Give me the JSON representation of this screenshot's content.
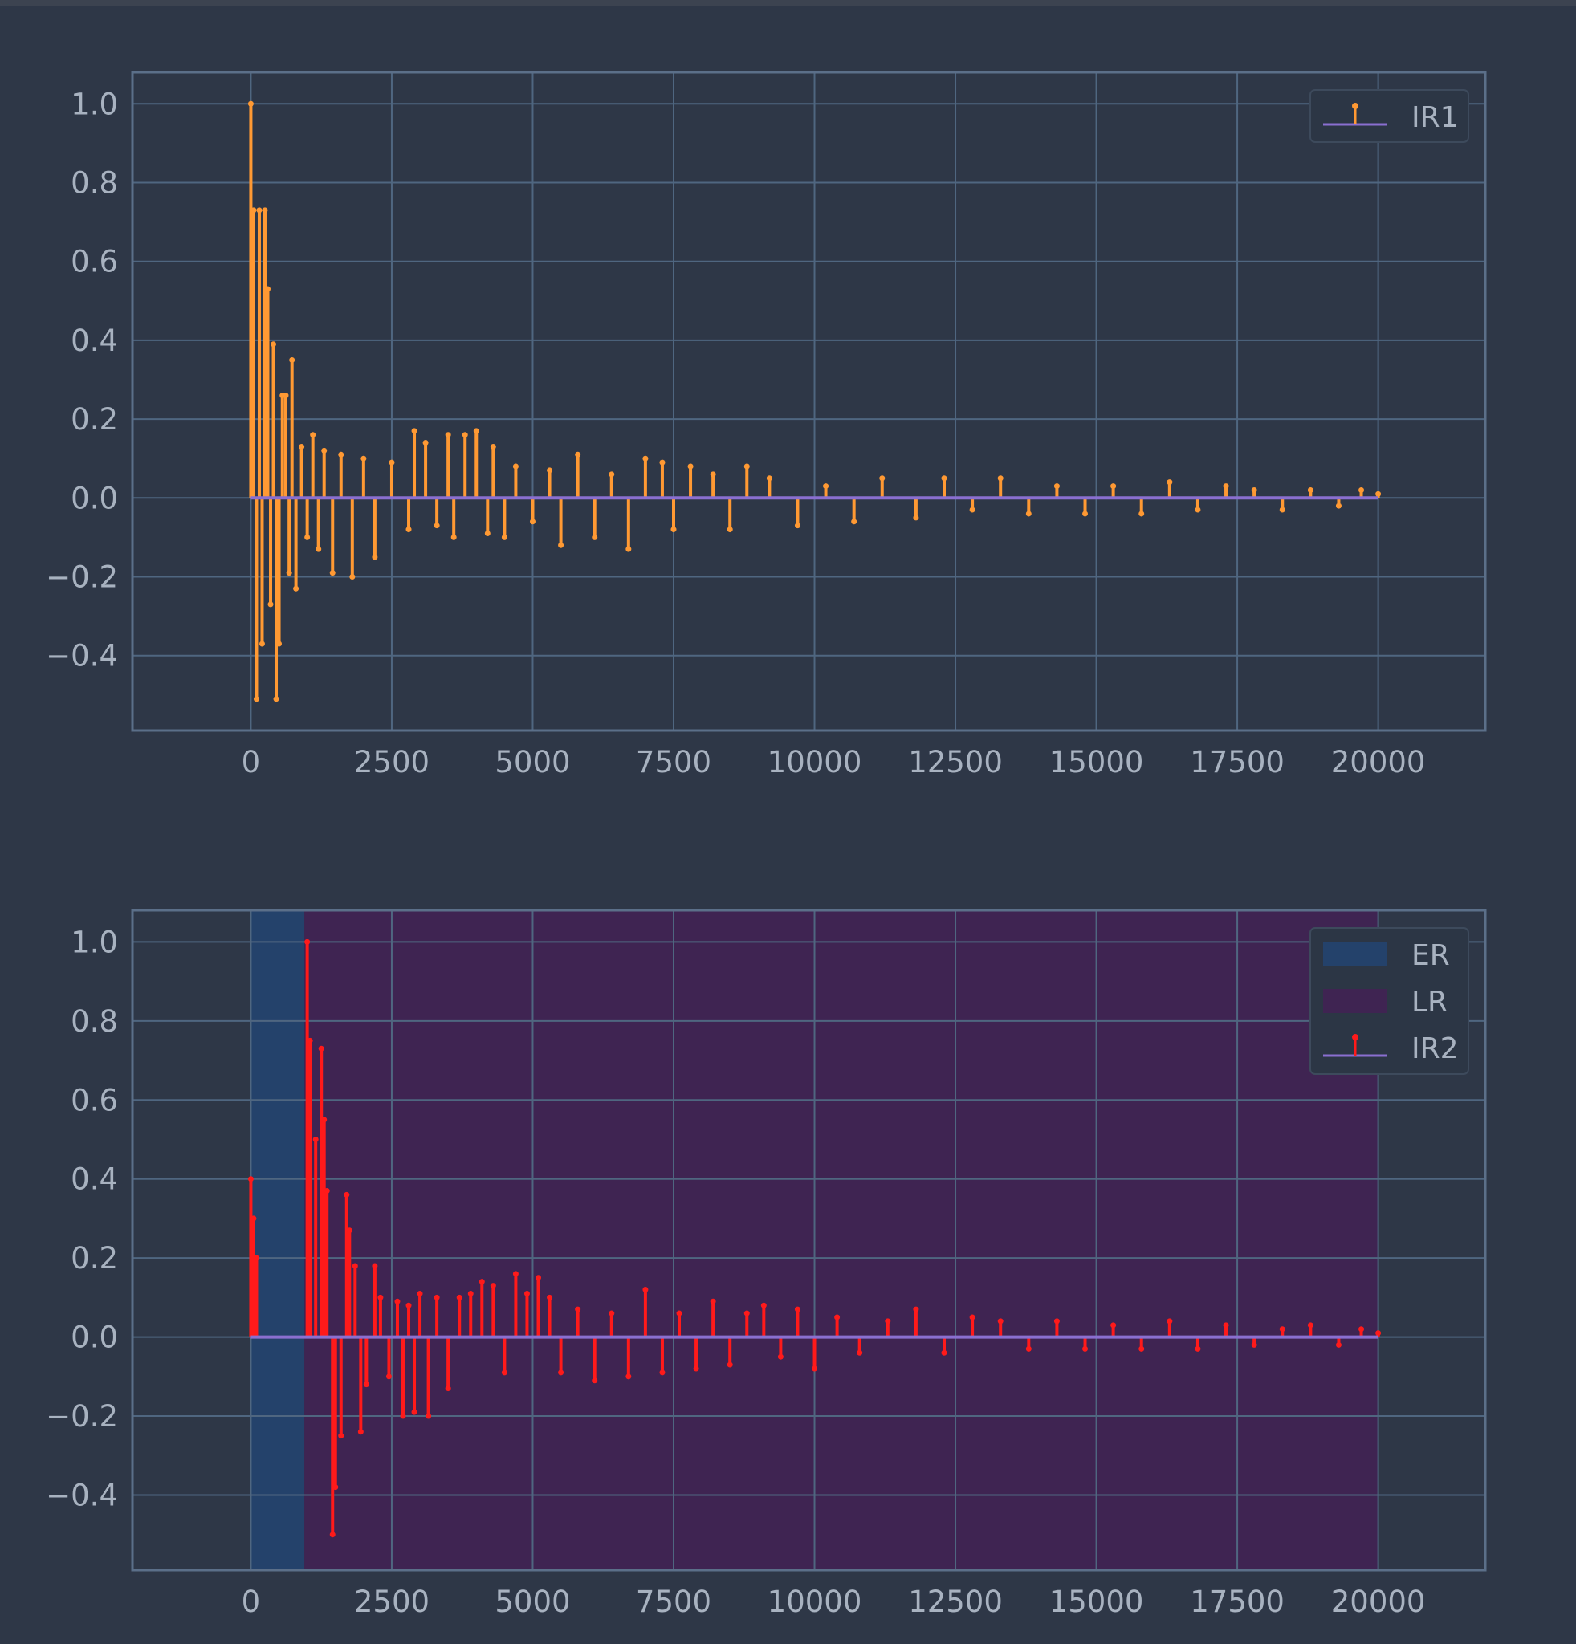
{
  "figure": {
    "background": "#2e3747"
  },
  "chart_data": [
    {
      "type": "stem",
      "title": "",
      "xlabel": "",
      "ylabel": "",
      "xlim": [
        -2100,
        21900
      ],
      "ylim": [
        -0.59,
        1.08
      ],
      "grid": true,
      "legend_position": "top-right",
      "xticks": [
        0,
        2500,
        5000,
        7500,
        10000,
        12500,
        15000,
        17500,
        20000
      ],
      "xtick_labels": [
        "0",
        "2500",
        "5000",
        "7500",
        "10000",
        "12500",
        "15000",
        "17500",
        "20000"
      ],
      "yticks": [
        1.0,
        0.8,
        0.6,
        0.4,
        0.2,
        0.0,
        -0.2,
        -0.4
      ],
      "ytick_labels": [
        "1.0",
        "0.8",
        "0.6",
        "0.4",
        "0.2",
        "0.0",
        "−0.2",
        "−0.4"
      ],
      "regions": [],
      "series": [
        {
          "name": "IR1",
          "color": "#ff9933",
          "baseline_color": "#8a6fd0",
          "x": [
            0,
            50,
            100,
            150,
            200,
            250,
            300,
            350,
            400,
            450,
            500,
            560,
            620,
            680,
            730,
            800,
            900,
            1000,
            1100,
            1200,
            1300,
            1450,
            1600,
            1800,
            2000,
            2200,
            2500,
            2800,
            2900,
            3100,
            3300,
            3500,
            3600,
            3800,
            4000,
            4200,
            4300,
            4500,
            4700,
            5000,
            5300,
            5500,
            5800,
            6100,
            6400,
            6700,
            7000,
            7300,
            7500,
            7800,
            8200,
            8500,
            8800,
            9200,
            9700,
            10200,
            10700,
            11200,
            11800,
            12300,
            12800,
            13300,
            13800,
            14300,
            14800,
            15300,
            15800,
            16300,
            16800,
            17300,
            17800,
            18300,
            18800,
            19300,
            19700,
            20000
          ],
          "values": [
            1.0,
            0.73,
            -0.51,
            0.73,
            -0.37,
            0.73,
            0.53,
            -0.27,
            0.39,
            -0.51,
            -0.37,
            0.26,
            0.26,
            -0.19,
            0.35,
            -0.23,
            0.13,
            -0.1,
            0.16,
            -0.13,
            0.12,
            -0.19,
            0.11,
            -0.2,
            0.1,
            -0.15,
            0.09,
            -0.08,
            0.17,
            0.14,
            -0.07,
            0.16,
            -0.1,
            0.16,
            0.17,
            -0.09,
            0.13,
            -0.1,
            0.08,
            -0.06,
            0.07,
            -0.12,
            0.11,
            -0.1,
            0.06,
            -0.13,
            0.1,
            0.09,
            -0.08,
            0.08,
            0.06,
            -0.08,
            0.08,
            0.05,
            -0.07,
            0.03,
            -0.06,
            0.05,
            -0.05,
            0.05,
            -0.03,
            0.05,
            -0.04,
            0.03,
            -0.04,
            0.03,
            -0.04,
            0.04,
            -0.03,
            0.03,
            0.02,
            -0.03,
            0.02,
            -0.02,
            0.02,
            0.01
          ]
        }
      ]
    },
    {
      "type": "stem",
      "title": "",
      "xlabel": "",
      "ylabel": "",
      "xlim": [
        -2100,
        21900
      ],
      "ylim": [
        -0.59,
        1.08
      ],
      "grid": true,
      "legend_position": "top-right",
      "xticks": [
        0,
        2500,
        5000,
        7500,
        10000,
        12500,
        15000,
        17500,
        20000
      ],
      "xtick_labels": [
        "0",
        "2500",
        "5000",
        "7500",
        "10000",
        "12500",
        "15000",
        "17500",
        "20000"
      ],
      "yticks": [
        1.0,
        0.8,
        0.6,
        0.4,
        0.2,
        0.0,
        -0.2,
        -0.4
      ],
      "ytick_labels": [
        "1.0",
        "0.8",
        "0.6",
        "0.4",
        "0.2",
        "0.0",
        "−0.2",
        "−0.4"
      ],
      "regions": [
        {
          "name": "ER",
          "x": [
            0,
            950
          ],
          "color": "#24426b"
        },
        {
          "name": "LR",
          "x": [
            950,
            20000
          ],
          "color": "#3f2452"
        }
      ],
      "series": [
        {
          "name": "IR2",
          "color": "#ff1a1a",
          "baseline_color": "#8a6fd0",
          "x": [
            0,
            50,
            100,
            1000,
            1050,
            1150,
            1250,
            1300,
            1350,
            1450,
            1500,
            1600,
            1700,
            1750,
            1850,
            1950,
            2050,
            2200,
            2300,
            2450,
            2600,
            2700,
            2800,
            2900,
            3000,
            3150,
            3300,
            3500,
            3700,
            3900,
            4100,
            4300,
            4500,
            4700,
            4900,
            5100,
            5300,
            5500,
            5800,
            6100,
            6400,
            6700,
            7000,
            7300,
            7600,
            7900,
            8200,
            8500,
            8800,
            9100,
            9400,
            9700,
            10000,
            10400,
            10800,
            11300,
            11800,
            12300,
            12800,
            13300,
            13800,
            14300,
            14800,
            15300,
            15800,
            16300,
            16800,
            17300,
            17800,
            18300,
            18800,
            19300,
            19700,
            20000
          ],
          "values": [
            0.4,
            0.3,
            0.2,
            1.0,
            0.75,
            0.5,
            0.73,
            0.55,
            0.37,
            -0.5,
            -0.38,
            -0.25,
            0.36,
            0.27,
            0.18,
            -0.24,
            -0.12,
            0.18,
            0.1,
            -0.1,
            0.09,
            -0.2,
            0.08,
            -0.19,
            0.11,
            -0.2,
            0.1,
            -0.13,
            0.1,
            0.11,
            0.14,
            0.13,
            -0.09,
            0.16,
            0.11,
            0.15,
            0.1,
            -0.09,
            0.07,
            -0.11,
            0.06,
            -0.1,
            0.12,
            -0.09,
            0.06,
            -0.08,
            0.09,
            -0.07,
            0.06,
            0.08,
            -0.05,
            0.07,
            -0.08,
            0.05,
            -0.04,
            0.04,
            0.07,
            -0.04,
            0.05,
            0.04,
            -0.03,
            0.04,
            -0.03,
            0.03,
            -0.03,
            0.04,
            -0.03,
            0.03,
            -0.02,
            0.02,
            0.03,
            -0.02,
            0.02,
            0.01
          ]
        }
      ]
    }
  ]
}
